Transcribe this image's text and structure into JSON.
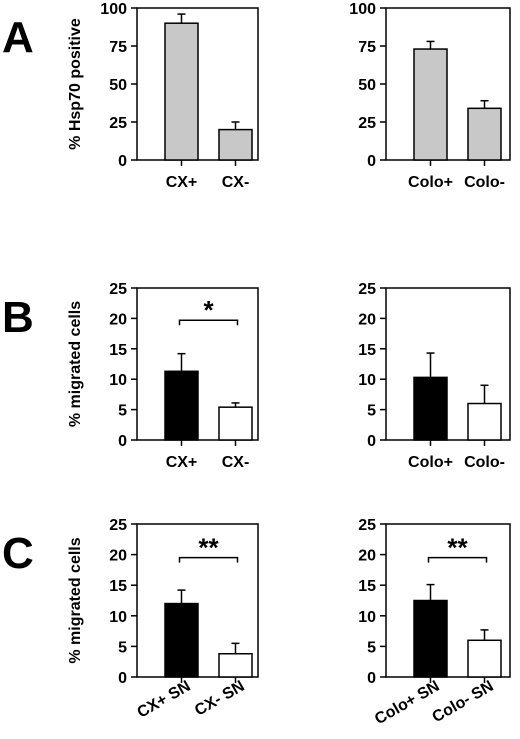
{
  "panels": [
    {
      "letter": "A"
    },
    {
      "letter": "B"
    },
    {
      "letter": "C"
    }
  ],
  "chart_data": [
    {
      "type": "bar",
      "panel": "A",
      "ylabel": "% Hsp70 positive",
      "ylim": [
        0,
        100
      ],
      "yticks": [
        "0",
        "25",
        "50",
        "75",
        "100"
      ],
      "categories": [
        "CX+",
        "CX-"
      ],
      "values": [
        90,
        20
      ],
      "errors": [
        6,
        5
      ],
      "colors": [
        "#c8c8c8",
        "#c8c8c8"
      ],
      "significance": ""
    },
    {
      "type": "bar",
      "panel": "A",
      "ylabel": "",
      "ylim": [
        0,
        100
      ],
      "yticks": [
        "0",
        "25",
        "50",
        "75",
        "100"
      ],
      "categories": [
        "Colo+",
        "Colo-"
      ],
      "values": [
        73,
        34
      ],
      "errors": [
        5,
        5
      ],
      "colors": [
        "#c8c8c8",
        "#c8c8c8"
      ],
      "significance": ""
    },
    {
      "type": "bar",
      "panel": "B",
      "ylabel": "% migrated cells",
      "ylim": [
        0,
        25
      ],
      "yticks": [
        "0",
        "5",
        "10",
        "15",
        "20",
        "25"
      ],
      "categories": [
        "CX+",
        "CX-"
      ],
      "values": [
        11.3,
        5.4
      ],
      "errors": [
        2.9,
        0.7
      ],
      "colors": [
        "#000000",
        "#ffffff"
      ],
      "significance": "*"
    },
    {
      "type": "bar",
      "panel": "B",
      "ylabel": "",
      "ylim": [
        0,
        25
      ],
      "yticks": [
        "0",
        "5",
        "10",
        "15",
        "20",
        "25"
      ],
      "categories": [
        "Colo+",
        "Colo-"
      ],
      "values": [
        10.3,
        6.0
      ],
      "errors": [
        4.0,
        3.0
      ],
      "colors": [
        "#000000",
        "#ffffff"
      ],
      "significance": ""
    },
    {
      "type": "bar",
      "panel": "C",
      "ylabel": "% migrated cells",
      "ylim": [
        0,
        25
      ],
      "yticks": [
        "0",
        "5",
        "10",
        "15",
        "20",
        "25"
      ],
      "categories": [
        "CX+ SN",
        "CX- SN"
      ],
      "values": [
        12.0,
        3.8
      ],
      "errors": [
        2.2,
        1.7
      ],
      "colors": [
        "#000000",
        "#ffffff"
      ],
      "significance": "**"
    },
    {
      "type": "bar",
      "panel": "C",
      "ylabel": "",
      "ylim": [
        0,
        25
      ],
      "yticks": [
        "0",
        "5",
        "10",
        "15",
        "20",
        "25"
      ],
      "categories": [
        "Colo+ SN",
        "Colo- SN"
      ],
      "values": [
        12.5,
        6.0
      ],
      "errors": [
        2.6,
        1.7
      ],
      "colors": [
        "#000000",
        "#ffffff"
      ],
      "significance": "**"
    }
  ]
}
